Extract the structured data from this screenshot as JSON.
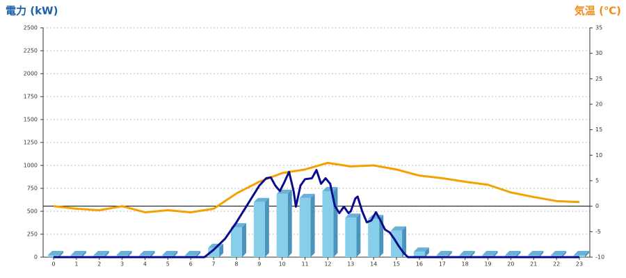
{
  "chart_data": {
    "type": "combo",
    "title": "電力 (kW)",
    "y2_title": "気温 (℃)",
    "categories": [
      "0",
      "1",
      "2",
      "3",
      "4",
      "5",
      "6",
      "7",
      "8",
      "9",
      "10",
      "11",
      "12",
      "13",
      "14",
      "15",
      "16",
      "17",
      "18",
      "19",
      "20",
      "21",
      "22",
      "23"
    ],
    "ylim": [
      0,
      2500
    ],
    "yticks": [
      0,
      250,
      500,
      750,
      1000,
      1250,
      1500,
      1750,
      2000,
      2250,
      2500
    ],
    "y2lim": [
      -10,
      35
    ],
    "y2ticks": [
      -10,
      -5,
      0,
      5,
      10,
      15,
      20,
      25,
      30,
      35
    ],
    "grid": true,
    "series": [
      {
        "type": "bar",
        "color": "#87ceeb",
        "values": [
          0,
          0,
          0,
          0,
          0,
          0,
          0,
          100,
          325,
          600,
          690,
          645,
          720,
          430,
          415,
          290,
          60,
          0,
          0,
          0,
          0,
          0,
          0,
          0
        ]
      },
      {
        "type": "line",
        "color": "#0a0a8c",
        "x": [
          0,
          6.6,
          7.0,
          7.5,
          8,
          8.5,
          9,
          9.3,
          9.5,
          9.7,
          9.9,
          10.1,
          10.3,
          10.5,
          10.6,
          10.8,
          11.0,
          11.3,
          11.5,
          11.7,
          11.9,
          12.1,
          12.3,
          12.5,
          12.7,
          12.9,
          13.0,
          13.2,
          13.3,
          13.5,
          13.7,
          13.9,
          14.1,
          14.3,
          14.5,
          14.7,
          14.9,
          15.1,
          15.3,
          15.5,
          23
        ],
        "values": [
          0,
          0,
          80,
          200,
          380,
          580,
          780,
          860,
          870,
          780,
          720,
          820,
          930,
          720,
          550,
          780,
          850,
          860,
          950,
          800,
          860,
          800,
          560,
          480,
          550,
          480,
          500,
          640,
          660,
          500,
          380,
          400,
          490,
          400,
          300,
          270,
          200,
          120,
          50,
          0,
          0
        ]
      },
      {
        "type": "line",
        "axis": "y2",
        "color": "#f5a000",
        "values": [
          0,
          -0.5,
          -0.8,
          0,
          -1.2,
          -0.8,
          -1.2,
          -0.5,
          2.5,
          4.8,
          6.5,
          7.2,
          8.5,
          7.8,
          8,
          7.2,
          6,
          5.5,
          4.8,
          4.2,
          2.7,
          1.8,
          1,
          0.8
        ]
      }
    ]
  }
}
